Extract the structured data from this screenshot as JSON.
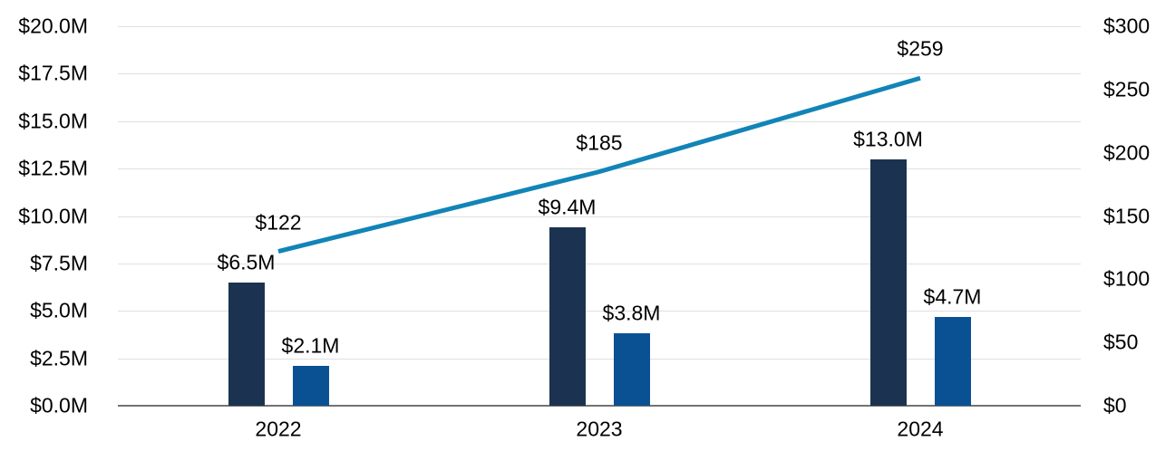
{
  "chart_data": {
    "type": "bar",
    "subtype": "clustered-bars-with-line-dual-axis",
    "title": "",
    "categories": [
      "2022",
      "2023",
      "2024"
    ],
    "series": [
      {
        "name": "dark-navy-bar-series",
        "render": "bar",
        "axis": "left",
        "color": "#1b3350",
        "values": [
          6.5,
          9.4,
          13.0
        ],
        "labels": [
          "$6.5M",
          "$9.4M",
          "$13.0M"
        ]
      },
      {
        "name": "blue-bar-series",
        "render": "bar",
        "axis": "left",
        "color": "#0a5193",
        "values": [
          2.1,
          3.8,
          4.7
        ],
        "labels": [
          "$2.1M",
          "$3.8M",
          "$4.7M"
        ]
      },
      {
        "name": "teal-line-series",
        "render": "line",
        "axis": "right",
        "color": "#1284b7",
        "values": [
          122,
          185,
          259
        ],
        "labels": [
          "$122",
          "$185",
          "$259"
        ]
      }
    ],
    "left_axis": {
      "min": 0,
      "max": 20,
      "step": 2.5,
      "unit": "millions-of-dollars",
      "tick_labels": [
        "$0.0M",
        "$2.5M",
        "$5.0M",
        "$7.5M",
        "$10.0M",
        "$12.5M",
        "$15.0M",
        "$17.5M",
        "$20.0M"
      ]
    },
    "right_axis": {
      "min": 0,
      "max": 300,
      "step": 50,
      "unit": "dollars",
      "tick_labels": [
        "$0",
        "$50",
        "$100",
        "$150",
        "$200",
        "$250",
        "$300"
      ]
    },
    "grid": true,
    "legend": "none",
    "colors": {
      "gridline": "#e0e0e0",
      "axis_baseline": "#737373",
      "label_text": "#000000",
      "background": "#ffffff"
    }
  }
}
